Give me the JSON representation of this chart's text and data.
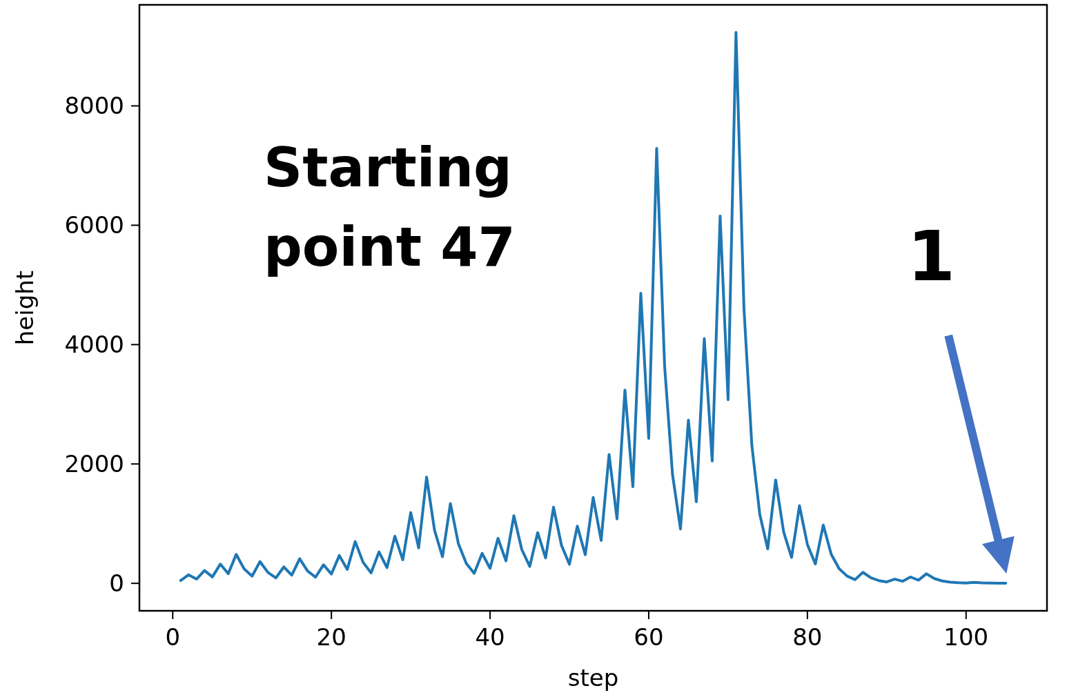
{
  "chart_data": {
    "type": "line",
    "xlabel": "step",
    "ylabel": "height",
    "x": [
      1,
      2,
      3,
      4,
      5,
      6,
      7,
      8,
      9,
      10,
      11,
      12,
      13,
      14,
      15,
      16,
      17,
      18,
      19,
      20,
      21,
      22,
      23,
      24,
      25,
      26,
      27,
      28,
      29,
      30,
      31,
      32,
      33,
      34,
      35,
      36,
      37,
      38,
      39,
      40,
      41,
      42,
      43,
      44,
      45,
      46,
      47,
      48,
      49,
      50,
      51,
      52,
      53,
      54,
      55,
      56,
      57,
      58,
      59,
      60,
      61,
      62,
      63,
      64,
      65,
      66,
      67,
      68,
      69,
      70,
      71,
      72,
      73,
      74,
      75,
      76,
      77,
      78,
      79,
      80,
      81,
      82,
      83,
      84,
      85,
      86,
      87,
      88,
      89,
      90,
      91,
      92,
      93,
      94,
      95,
      96,
      97,
      98,
      99,
      100,
      101,
      102,
      103,
      104,
      105
    ],
    "series": [
      {
        "color": "#1f77b4",
        "values": [
          47,
          142,
          71,
          214,
          107,
          322,
          161,
          484,
          242,
          121,
          364,
          182,
          91,
          274,
          137,
          412,
          206,
          103,
          310,
          155,
          466,
          233,
          700,
          350,
          175,
          526,
          263,
          790,
          395,
          1186,
          593,
          1780,
          890,
          445,
          1336,
          668,
          334,
          167,
          502,
          251,
          754,
          377,
          1132,
          566,
          283,
          850,
          425,
          1276,
          638,
          319,
          958,
          479,
          1438,
          719,
          2158,
          1079,
          3238,
          1619,
          4858,
          2429,
          7288,
          3644,
          1822,
          911,
          2734,
          1367,
          4102,
          2051,
          6154,
          3077,
          9232,
          4616,
          2308,
          1154,
          577,
          1732,
          866,
          433,
          1300,
          650,
          325,
          976,
          488,
          244,
          122,
          61,
          184,
          92,
          46,
          23,
          70,
          35,
          106,
          53,
          160,
          80,
          40,
          20,
          10,
          5,
          16,
          8,
          4,
          2,
          1
        ]
      }
    ],
    "xlim": [
      -4.2,
      110.2
    ],
    "ylim": [
      -460.55,
      9693.55
    ],
    "xticks": [
      0,
      20,
      40,
      60,
      80,
      100
    ],
    "yticks": [
      0,
      2000,
      4000,
      6000,
      8000
    ],
    "annotations": [
      "Starting point 47",
      "1"
    ]
  }
}
